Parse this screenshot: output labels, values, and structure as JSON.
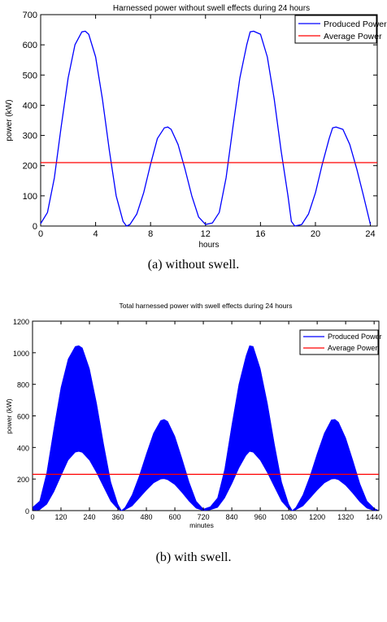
{
  "colors": {
    "produced": "#0000ff",
    "average": "#ff0000",
    "axis": "#000000"
  },
  "chart_data": [
    {
      "type": "line",
      "title": "Harnessed power without swell effects during 24 hours",
      "xlabel": "hours",
      "ylabel": "power (kW)",
      "xlim": [
        0,
        24.5
      ],
      "ylim": [
        0,
        700
      ],
      "xticks": [
        0,
        4,
        8,
        12,
        16,
        20,
        24
      ],
      "yticks": [
        0,
        100,
        200,
        300,
        400,
        500,
        600,
        700
      ],
      "legend_position": "top-right",
      "grid": false,
      "series": [
        {
          "name": "Produced Power",
          "x": [
            0,
            0.5,
            1,
            1.5,
            2,
            2.5,
            3,
            3.25,
            3.5,
            4,
            4.5,
            5,
            5.5,
            6,
            6.25,
            6.5,
            7,
            7.5,
            8,
            8.5,
            9,
            9.25,
            9.5,
            10,
            10.5,
            11,
            11.5,
            12,
            12.5,
            13,
            13.5,
            14,
            14.5,
            15,
            15.25,
            15.5,
            16,
            16.5,
            17,
            17.5,
            18,
            18.25,
            18.5,
            19,
            19.5,
            20,
            20.5,
            21,
            21.25,
            21.5,
            22,
            22.5,
            23,
            23.5,
            24
          ],
          "y": [
            8,
            45,
            160,
            330,
            490,
            600,
            643,
            645,
            635,
            560,
            420,
            250,
            100,
            15,
            0,
            5,
            40,
            110,
            205,
            290,
            325,
            328,
            320,
            270,
            190,
            100,
            30,
            5,
            10,
            45,
            160,
            330,
            490,
            600,
            643,
            645,
            635,
            560,
            420,
            250,
            100,
            15,
            0,
            5,
            40,
            110,
            205,
            290,
            325,
            328,
            320,
            270,
            190,
            100,
            5
          ]
        },
        {
          "name": "Average Power",
          "x": [
            0,
            24.5
          ],
          "y": [
            210,
            210
          ]
        }
      ]
    },
    {
      "type": "line",
      "title": "Total harnessed power with swell effects during 24 hours",
      "xlabel": "minutes",
      "ylabel": "power (kW)",
      "xlim": [
        0,
        1460
      ],
      "ylim": [
        0,
        1200
      ],
      "xticks": [
        0,
        120,
        240,
        360,
        480,
        600,
        720,
        840,
        960,
        1080,
        1200,
        1320,
        1440
      ],
      "yticks": [
        0,
        200,
        400,
        600,
        800,
        1000,
        1200
      ],
      "legend_position": "top-right",
      "grid": false,
      "series": [
        {
          "name": "Produced Power",
          "x": [
            0,
            30,
            60,
            90,
            120,
            150,
            180,
            195,
            210,
            240,
            270,
            300,
            330,
            360,
            375,
            390,
            420,
            450,
            480,
            510,
            540,
            555,
            570,
            600,
            630,
            660,
            690,
            720,
            750,
            780,
            810,
            840,
            870,
            900,
            915,
            930,
            960,
            990,
            1020,
            1050,
            1080,
            1095,
            1110,
            1140,
            1170,
            1200,
            1230,
            1260,
            1275,
            1290,
            1320,
            1350,
            1380,
            1410,
            1440,
            1460
          ],
          "y_upper": [
            20,
            60,
            240,
            520,
            780,
            960,
            1040,
            1045,
            1030,
            900,
            680,
            420,
            180,
            40,
            0,
            20,
            100,
            220,
            360,
            490,
            570,
            578,
            565,
            470,
            330,
            180,
            60,
            10,
            25,
            80,
            260,
            540,
            800,
            980,
            1045,
            1040,
            900,
            680,
            420,
            180,
            40,
            0,
            20,
            100,
            220,
            360,
            490,
            575,
            578,
            560,
            460,
            320,
            170,
            60,
            15,
            0
          ],
          "y_lower": [
            0,
            5,
            40,
            120,
            220,
            320,
            370,
            375,
            368,
            320,
            240,
            150,
            60,
            10,
            0,
            5,
            30,
            80,
            130,
            175,
            200,
            202,
            195,
            165,
            115,
            60,
            15,
            0,
            5,
            20,
            80,
            170,
            270,
            350,
            375,
            370,
            320,
            240,
            150,
            60,
            10,
            0,
            5,
            30,
            80,
            130,
            175,
            200,
            202,
            195,
            160,
            110,
            55,
            15,
            0,
            0
          ]
        },
        {
          "name": "Average Power",
          "x": [
            0,
            1460
          ],
          "y": [
            230,
            230
          ]
        }
      ]
    }
  ],
  "captions": [
    "(a)  without swell.",
    "(b)  with swell."
  ]
}
